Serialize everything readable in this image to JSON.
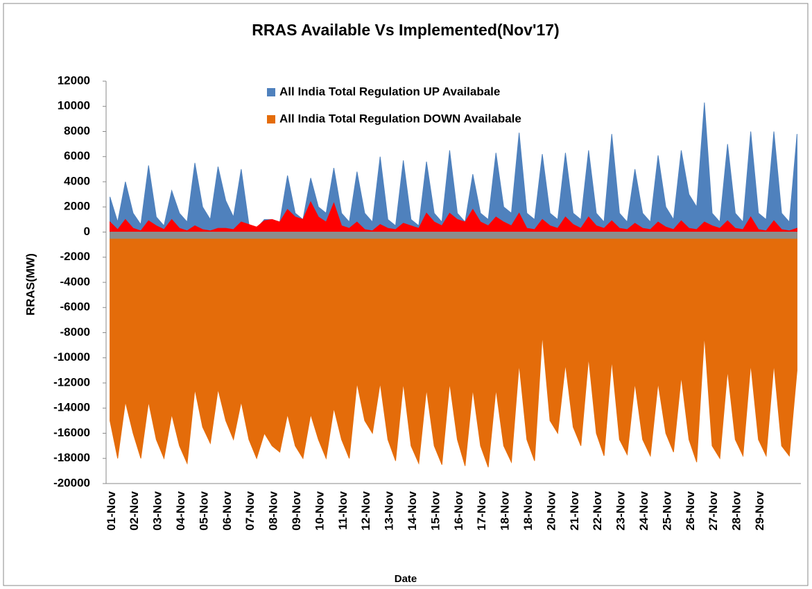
{
  "chart_data": {
    "type": "area",
    "title": "RRAS Available Vs Implemented(Nov'17)",
    "y_label": "RRAS(MW)",
    "x_label": "Date",
    "categories": [
      "01-Nov",
      "02-Nov",
      "03-Nov",
      "04-Nov",
      "05-Nov",
      "06-Nov",
      "07-Nov",
      "08-Nov",
      "09-Nov",
      "10-Nov",
      "11-Nov",
      "12-Nov",
      "13-Nov",
      "14-Nov",
      "15-Nov",
      "16-Nov",
      "17-Nov",
      "18-Nov",
      "18-Nov",
      "20-Nov",
      "21-Nov",
      "22-Nov",
      "23-Nov",
      "24-Nov",
      "25-Nov",
      "26-Nov",
      "27-Nov",
      "28-Nov",
      "29-Nov",
      null
    ],
    "ylim": [
      -20000,
      12000
    ],
    "yticks": [
      -20000,
      -18000,
      -16000,
      -14000,
      -12000,
      -10000,
      -8000,
      -6000,
      -4000,
      -2000,
      0,
      2000,
      4000,
      6000,
      8000,
      10000,
      12000
    ],
    "series": [
      {
        "name": "All India Total  Regulation DOWN Availabale",
        "color": "#e46c0a",
        "values": [
          [
            -15000,
            -18000,
            -13500
          ],
          [
            -16000,
            -18000,
            -13500
          ],
          [
            -16500,
            -18000,
            -14500
          ],
          [
            -17000,
            -18400,
            -12500
          ],
          [
            -15500,
            -16800,
            -12500
          ],
          [
            -15000,
            -16500,
            -13500
          ],
          [
            -16500,
            -18000,
            -16000
          ],
          [
            -17000,
            -17500,
            -14500
          ],
          [
            -17000,
            -18000,
            -14500
          ],
          [
            -16500,
            -18000,
            -14000
          ],
          [
            -16500,
            -18000,
            -12000
          ],
          [
            -15000,
            -16000,
            -12000
          ],
          [
            -16500,
            -18200,
            -12000
          ],
          [
            -17000,
            -18400,
            -12500
          ],
          [
            -17000,
            -18500,
            -12000
          ],
          [
            -16500,
            -18600,
            -12500
          ],
          [
            -17000,
            -18700,
            -12500
          ],
          [
            -17000,
            -18300,
            -10500
          ],
          [
            -16500,
            -18200,
            -8200
          ],
          [
            -15000,
            -16000,
            -10500
          ],
          [
            -15500,
            -17000,
            -10000
          ],
          [
            -16000,
            -17800,
            -10200
          ],
          [
            -16500,
            -17700,
            -12000
          ],
          [
            -16500,
            -17800,
            -12000
          ],
          [
            -16000,
            -17500,
            -11500
          ],
          [
            -16500,
            -18300,
            -8200
          ],
          [
            -17000,
            -18000,
            -11000
          ],
          [
            -16500,
            -17800,
            -10500
          ],
          [
            -16500,
            -17800,
            -10500
          ],
          [
            -17000,
            -17800,
            -11000
          ]
        ]
      },
      {
        "name": "All India Total Regulation UP Availabale",
        "color": "#4f81bd",
        "values": [
          [
            2800,
            800,
            4000
          ],
          [
            1500,
            600,
            5300
          ],
          [
            1200,
            500,
            3300
          ],
          [
            1500,
            800,
            5500
          ],
          [
            2000,
            1000,
            5200
          ],
          [
            2500,
            1200,
            5000
          ],
          [
            600,
            300,
            1000
          ],
          [
            1000,
            800,
            4500
          ],
          [
            1500,
            1000,
            4300
          ],
          [
            2000,
            1500,
            5100
          ],
          [
            1500,
            800,
            4800
          ],
          [
            1500,
            800,
            6000
          ],
          [
            1000,
            500,
            5700
          ],
          [
            1000,
            500,
            5600
          ],
          [
            1500,
            800,
            6500
          ],
          [
            1500,
            800,
            4600
          ],
          [
            1500,
            1000,
            6300
          ],
          [
            2000,
            1500,
            7900
          ],
          [
            1500,
            1000,
            6200
          ],
          [
            1500,
            1000,
            6300
          ],
          [
            1500,
            1000,
            6500
          ],
          [
            1500,
            800,
            7800
          ],
          [
            1500,
            800,
            5000
          ],
          [
            1500,
            800,
            6100
          ],
          [
            2000,
            1000,
            6500
          ],
          [
            3000,
            2000,
            10300
          ],
          [
            1500,
            800,
            7000
          ],
          [
            1500,
            800,
            8000
          ],
          [
            1500,
            1000,
            8000
          ],
          [
            1500,
            800,
            7800
          ]
        ]
      },
      {
        "color": "#ff0000",
        "values": [
          [
            800,
            200,
            1000
          ],
          [
            300,
            100,
            900
          ],
          [
            500,
            200,
            1000
          ],
          [
            300,
            100,
            500
          ],
          [
            200,
            100,
            300
          ],
          [
            300,
            200,
            800
          ],
          [
            600,
            400,
            900
          ],
          [
            1000,
            800,
            1800
          ],
          [
            1200,
            1000,
            2400
          ],
          [
            1200,
            800,
            2300
          ],
          [
            500,
            300,
            800
          ],
          [
            200,
            100,
            600
          ],
          [
            300,
            200,
            700
          ],
          [
            500,
            300,
            1500
          ],
          [
            800,
            500,
            1500
          ],
          [
            1000,
            800,
            1800
          ],
          [
            800,
            500,
            1200
          ],
          [
            800,
            500,
            1500
          ],
          [
            300,
            200,
            1000
          ],
          [
            500,
            300,
            1200
          ],
          [
            600,
            300,
            1200
          ],
          [
            500,
            300,
            900
          ],
          [
            300,
            200,
            700
          ],
          [
            300,
            200,
            800
          ],
          [
            400,
            200,
            900
          ],
          [
            300,
            200,
            800
          ],
          [
            500,
            300,
            900
          ],
          [
            300,
            200,
            1200
          ],
          [
            200,
            100,
            900
          ],
          [
            200,
            100,
            300
          ]
        ]
      },
      {
        "color": "#8c8c8c",
        "values": [
          [
            -500,
            -500,
            -500
          ],
          [
            -500,
            -500,
            -500
          ],
          [
            -500,
            -500,
            -500
          ],
          [
            -500,
            -500,
            -500
          ],
          [
            -500,
            -500,
            -500
          ],
          [
            -500,
            -500,
            -500
          ],
          [
            -500,
            -500,
            -500
          ],
          [
            -500,
            -500,
            -500
          ],
          [
            -500,
            -500,
            -500
          ],
          [
            -500,
            -500,
            -500
          ],
          [
            -500,
            -500,
            -500
          ],
          [
            -500,
            -500,
            -500
          ],
          [
            -500,
            -500,
            -500
          ],
          [
            -500,
            -500,
            -500
          ],
          [
            -500,
            -500,
            -500
          ],
          [
            -500,
            -500,
            -500
          ],
          [
            -500,
            -500,
            -500
          ],
          [
            -500,
            -500,
            -500
          ],
          [
            -500,
            -500,
            -500
          ],
          [
            -500,
            -500,
            -500
          ],
          [
            -500,
            -500,
            -500
          ],
          [
            -500,
            -500,
            -500
          ],
          [
            -500,
            -500,
            -500
          ],
          [
            -500,
            -500,
            -500
          ],
          [
            -500,
            -500,
            -500
          ],
          [
            -500,
            -500,
            -500
          ],
          [
            -500,
            -500,
            -500
          ],
          [
            -500,
            -500,
            -500
          ],
          [
            -500,
            -500,
            -500
          ],
          [
            -500,
            -500,
            -500
          ]
        ]
      }
    ],
    "legend": "top"
  }
}
